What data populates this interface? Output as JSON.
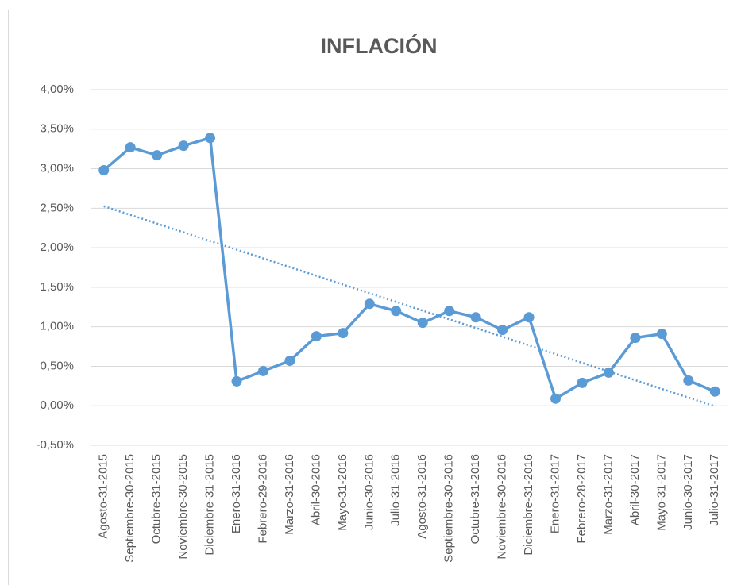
{
  "chart_data": {
    "type": "line",
    "title": "INFLACIÓN",
    "categories": [
      "Agosto-31-2015",
      "Septiembre-30-2015",
      "Octubre-31-2015",
      "Noviembre-30-2015",
      "Diciembre-31-2015",
      "Enero-31-2016",
      "Febrero-29-2016",
      "Marzo-31-2016",
      "Abril-30-2016",
      "Mayo-31-2016",
      "Junio-30-2016",
      "Julio-31-2016",
      "Agosto-31-2016",
      "Septiembre-30-2016",
      "Octubre-31-2016",
      "Noviembre-30-2016",
      "Diciembre-31-2016",
      "Enero-31-2017",
      "Febrero-28-2017",
      "Marzo-31-2017",
      "Abril-30-2017",
      "Mayo-31-2017",
      "Junio-30-2017",
      "Julio-31-2017"
    ],
    "values": [
      2.98,
      3.27,
      3.17,
      3.29,
      3.39,
      0.31,
      0.44,
      0.57,
      0.88,
      0.92,
      1.29,
      1.2,
      1.05,
      1.2,
      1.12,
      0.96,
      1.12,
      0.09,
      0.29,
      0.42,
      0.86,
      0.91,
      0.32,
      0.18
    ],
    "color": "#5b9bd5",
    "ylim": [
      -0.5,
      4
    ],
    "yticks": [
      {
        "value": -0.5,
        "label": "-0,50%"
      },
      {
        "value": 0,
        "label": "0,00%"
      },
      {
        "value": 0.5,
        "label": "0,50%"
      },
      {
        "value": 1,
        "label": "1,00%"
      },
      {
        "value": 1.5,
        "label": "1,50%"
      },
      {
        "value": 2,
        "label": "2,00%"
      },
      {
        "value": 2.5,
        "label": "2,50%"
      },
      {
        "value": 3,
        "label": "3,00%"
      },
      {
        "value": 3.5,
        "label": "3,50%"
      },
      {
        "value": 4,
        "label": "4,00%"
      }
    ],
    "grid": true,
    "trendline": "linear"
  }
}
